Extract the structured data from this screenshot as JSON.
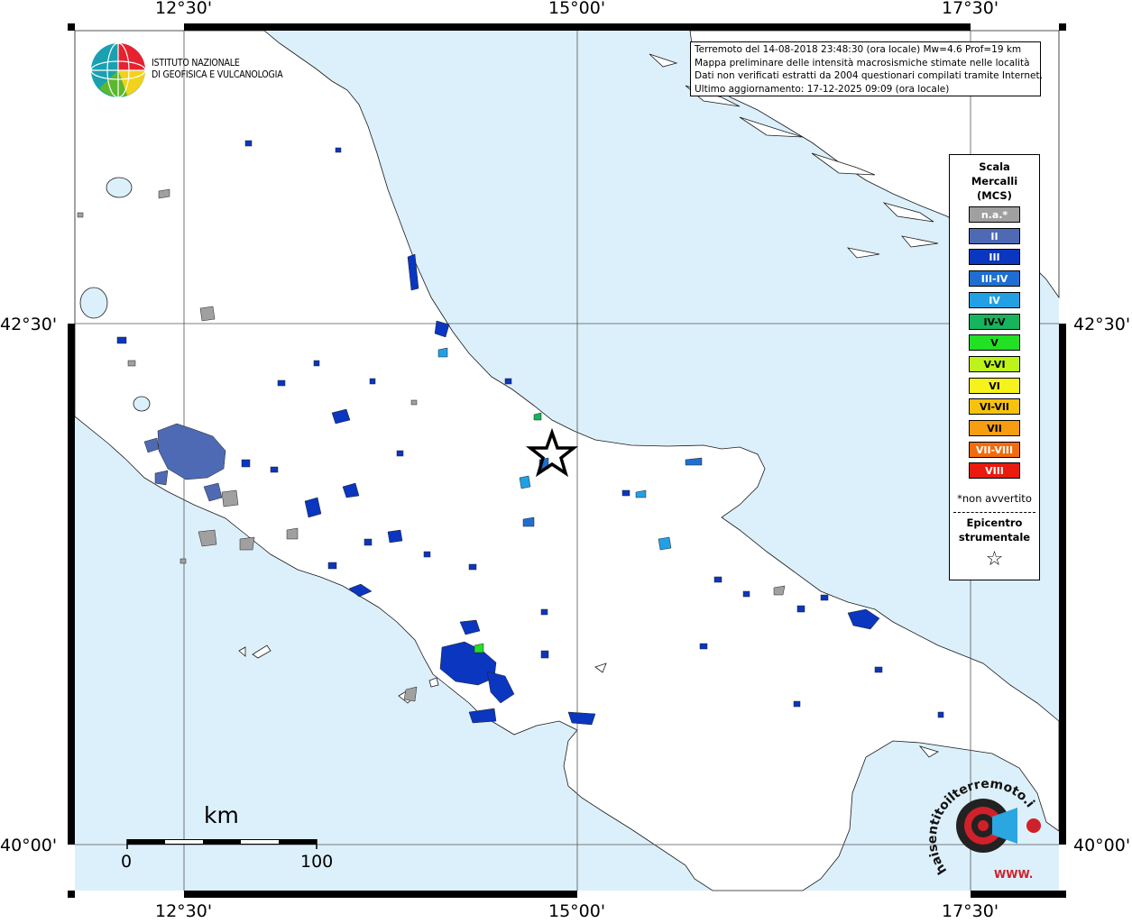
{
  "map": {
    "lon_labels": [
      "12°30'",
      "15°00'",
      "17°30'"
    ],
    "lat_labels": [
      "42°30'",
      "40°00'"
    ]
  },
  "logo": {
    "line1": "ISTITUTO NAZIONALE",
    "line2": "DI GEOFISICA E VULCANOLOGIA"
  },
  "info": {
    "line1": "Terremoto del 14-08-2018 23:48:30 (ora locale) Mw=4.6 Prof=19 km",
    "line2": "Mappa preliminare delle intensità macrosismiche stimate nelle località",
    "line3": "Dati non verificati estratti da 2004 questionari compilati tramite Internet.",
    "line4": "Ultimo aggiornamento: 17-12-2025 09:09 (ora locale)"
  },
  "legend": {
    "title1": "Scala",
    "title2": "Mercalli",
    "title3": "(MCS)",
    "classes": [
      {
        "label": "n.a.*",
        "color": "#a0a0a0",
        "text": "#ffffff"
      },
      {
        "label": "II",
        "color": "#4e6ab5",
        "text": "#ffffff"
      },
      {
        "label": "III",
        "color": "#0a36c0",
        "text": "#ffffff"
      },
      {
        "label": "III-IV",
        "color": "#1f6fd2",
        "text": "#ffffff"
      },
      {
        "label": "IV",
        "color": "#22a0e4",
        "text": "#ffffff"
      },
      {
        "label": "IV-V",
        "color": "#16b45c",
        "text": "#000000"
      },
      {
        "label": "V",
        "color": "#22e024",
        "text": "#000000"
      },
      {
        "label": "V-VI",
        "color": "#bdf21a",
        "text": "#000000"
      },
      {
        "label": "VI",
        "color": "#f6f21c",
        "text": "#000000"
      },
      {
        "label": "VI-VII",
        "color": "#f6c20e",
        "text": "#000000"
      },
      {
        "label": "VII",
        "color": "#f69e10",
        "text": "#000000"
      },
      {
        "label": "VII-VIII",
        "color": "#f26c0e",
        "text": "#ffffff"
      },
      {
        "label": "VIII",
        "color": "#ea1a0e",
        "text": "#ffffff"
      }
    ],
    "note": "*non avvertito",
    "epicenter1": "Epicentro",
    "epicenter2": "strumentale",
    "star": "☆"
  },
  "scale": {
    "title": "km",
    "min": "0",
    "max": "100"
  },
  "badge": {
    "text": "haisentitoilterremoto.it ?",
    "url": "WWW."
  },
  "colors": {
    "sea": "#dcf0fb",
    "land": "#ffffff",
    "grid": "#555555"
  }
}
